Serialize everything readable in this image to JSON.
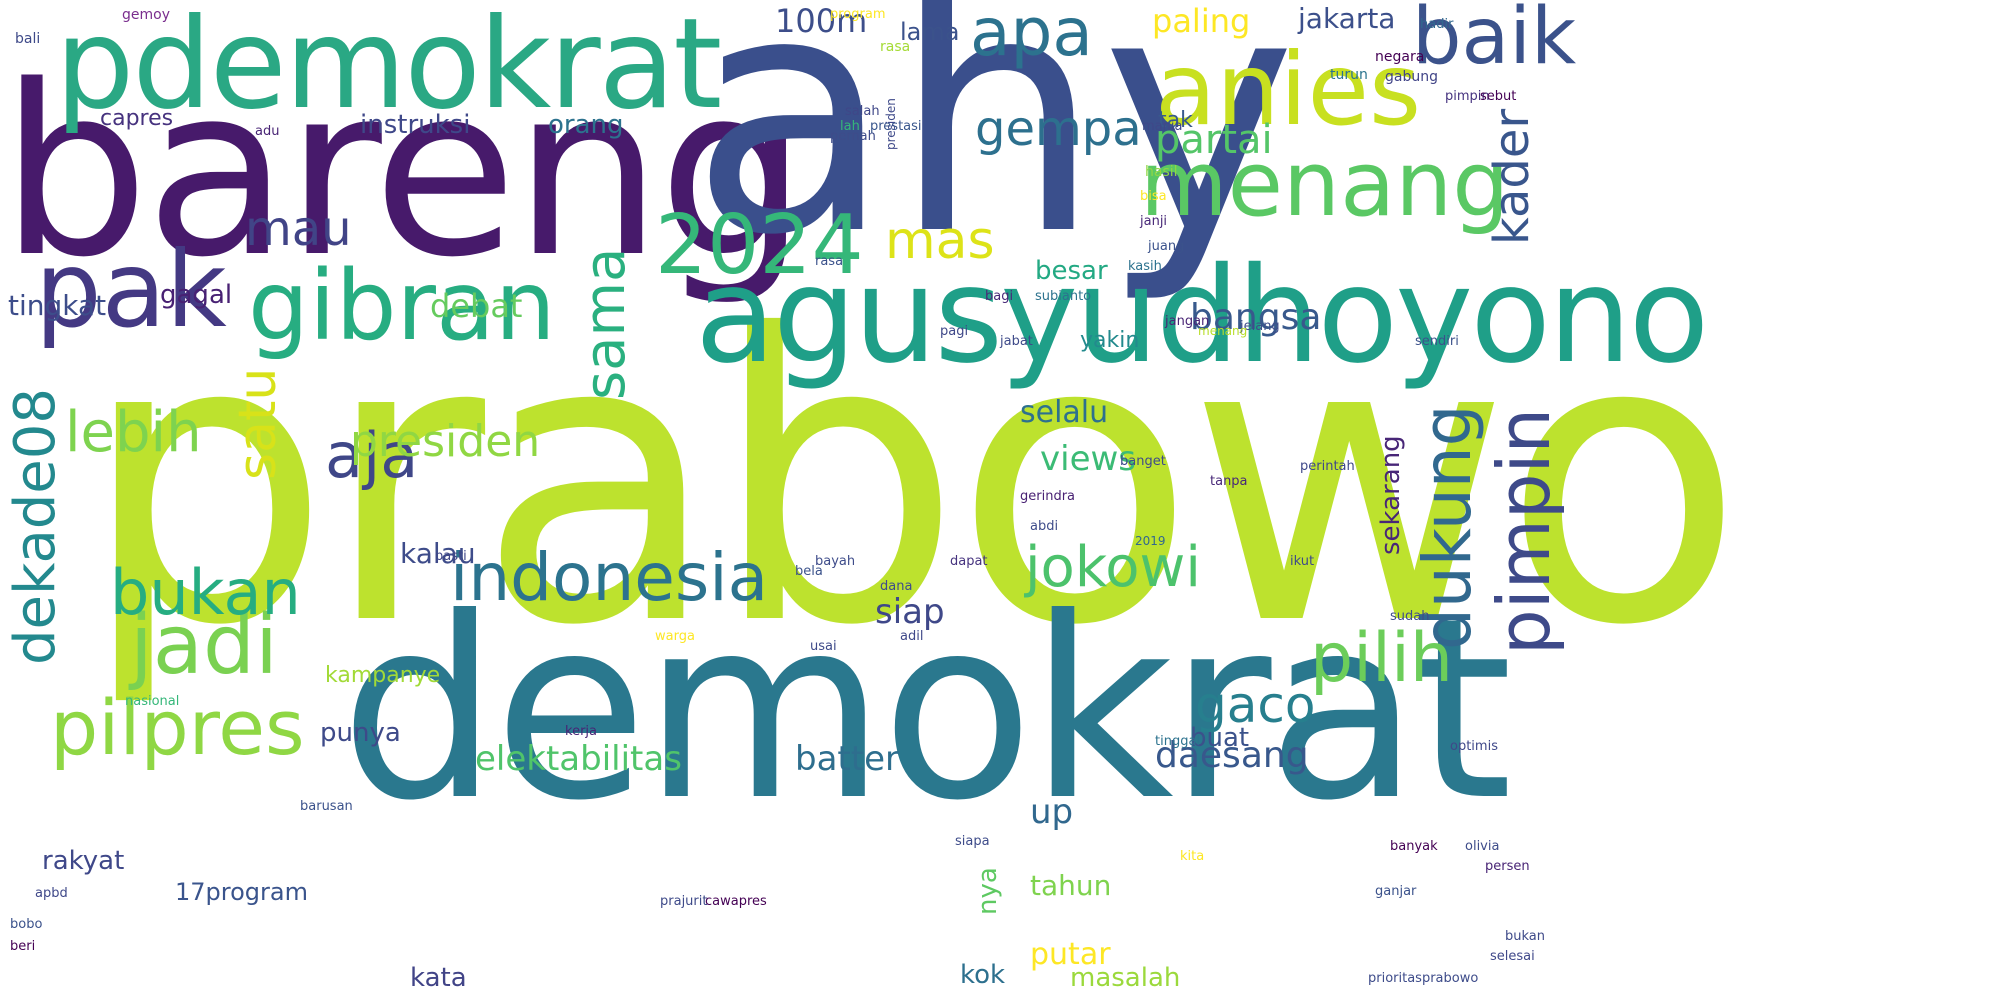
{
  "word_cloud": {
    "words": [
      {
        "text": "prabowo",
        "color": "#bde22e"
      },
      {
        "text": "bareng",
        "color": "#471a6b"
      },
      {
        "text": "ahy",
        "color": "#3a4f8c"
      },
      {
        "text": "demokrat",
        "color": "#2a788e"
      },
      {
        "text": "pdemokrat",
        "color": "#2aa884"
      },
      {
        "text": "agusyudhoyono",
        "color": "#1f9f88"
      },
      {
        "text": "anies",
        "color": "#c8e020"
      },
      {
        "text": "menang",
        "color": "#5ac864"
      },
      {
        "text": "gibran",
        "color": "#27ad81"
      },
      {
        "text": "pak",
        "color": "#443983"
      },
      {
        "text": "2024",
        "color": "#35b779"
      },
      {
        "text": "apa",
        "color": "#2c728e"
      },
      {
        "text": "baik",
        "color": "#3b528b"
      },
      {
        "text": "indonesia",
        "color": "#2c738e"
      },
      {
        "text": "jadi",
        "color": "#7ad151"
      },
      {
        "text": "pilpres",
        "color": "#8fd744"
      },
      {
        "text": "bukan",
        "color": "#26ad81"
      },
      {
        "text": "jokowi",
        "color": "#4cc26c"
      },
      {
        "text": "pimpin",
        "color": "#3e4a89"
      },
      {
        "text": "dukung",
        "color": "#31688e"
      },
      {
        "text": "pilih",
        "color": "#6ccd5a"
      },
      {
        "text": "dekade08",
        "color": "#23898e"
      },
      {
        "text": "sama",
        "color": "#2ab07f"
      },
      {
        "text": "satu",
        "color": "#d8e219"
      },
      {
        "text": "aja",
        "color": "#3f4788"
      },
      {
        "text": "lebih",
        "color": "#7ed34f"
      },
      {
        "text": "presiden",
        "color": "#90d743"
      },
      {
        "text": "mas",
        "color": "#dde318"
      },
      {
        "text": "mau",
        "color": "#414487"
      },
      {
        "text": "gempa",
        "color": "#2d708e"
      },
      {
        "text": "partai",
        "color": "#54c568"
      },
      {
        "text": "kader",
        "color": "#39568c"
      },
      {
        "text": "gaco",
        "color": "#277f8e"
      },
      {
        "text": "daesang",
        "color": "#38588c"
      },
      {
        "text": "elektabilitas",
        "color": "#50c46a"
      },
      {
        "text": "batter",
        "color": "#2e6e8e"
      },
      {
        "text": "views",
        "color": "#3bbb75"
      },
      {
        "text": "debat",
        "color": "#65cb5e"
      },
      {
        "text": "paling",
        "color": "#fde725"
      },
      {
        "text": "100m",
        "color": "#3d4e8a"
      },
      {
        "text": "jakarta",
        "color": "#3c508b"
      },
      {
        "text": "capres",
        "color": "#46327e"
      },
      {
        "text": "instruksi",
        "color": "#3f4889"
      },
      {
        "text": "orang",
        "color": "#2c728e"
      },
      {
        "text": "tak",
        "color": "#38598c"
      },
      {
        "text": "lama",
        "color": "#3b528b"
      },
      {
        "text": "besar",
        "color": "#23a983"
      },
      {
        "text": "yakin",
        "color": "#238a8d"
      },
      {
        "text": "bangsa",
        "color": "#38598c"
      },
      {
        "text": "tingkat",
        "color": "#3d4d8a"
      },
      {
        "text": "gagal",
        "color": "#482173"
      },
      {
        "text": "selalu",
        "color": "#2d718e"
      },
      {
        "text": "kalau",
        "color": "#3e4c8a"
      },
      {
        "text": "siap",
        "color": "#3f4889"
      },
      {
        "text": "kampanye",
        "color": "#a2da37"
      },
      {
        "text": "sekarang",
        "color": "#482677"
      },
      {
        "text": "punya",
        "color": "#3e4a89"
      },
      {
        "text": "buat",
        "color": "#3b528b"
      },
      {
        "text": "up",
        "color": "#31688e"
      },
      {
        "text": "rakyat",
        "color": "#3f4889"
      },
      {
        "text": "17program",
        "color": "#3a548c"
      },
      {
        "text": "nya",
        "color": "#5ec962"
      },
      {
        "text": "tahun",
        "color": "#7fd34e"
      },
      {
        "text": "putar",
        "color": "#fde725"
      },
      {
        "text": "kata",
        "color": "#414487"
      },
      {
        "text": "kok",
        "color": "#2d708e"
      },
      {
        "text": "masalah",
        "color": "#9bd93c"
      },
      {
        "text": "gemoy",
        "color": "#7a2e8e"
      },
      {
        "text": "bali",
        "color": "#3e4a89"
      },
      {
        "text": "program",
        "color": "#fde725"
      },
      {
        "text": "negara",
        "color": "#440154"
      },
      {
        "text": "hadir",
        "color": "#31688e"
      },
      {
        "text": "rasa",
        "color": "#a5db36"
      },
      {
        "text": "rasa",
        "color": "#3b528b"
      },
      {
        "text": "presiden",
        "color": "#3e4989"
      },
      {
        "text": "gabung",
        "color": "#414487"
      },
      {
        "text": "turun",
        "color": "#2b748e"
      },
      {
        "text": "pimpin",
        "color": "#46337f"
      },
      {
        "text": "sebut",
        "color": "#440154"
      },
      {
        "text": "salah",
        "color": "#3f4788"
      },
      {
        "text": "adu",
        "color": "#482475"
      },
      {
        "text": "pernah",
        "color": "#3e4c8a"
      },
      {
        "text": "lah",
        "color": "#35b779"
      },
      {
        "text": "prestasi",
        "color": "#39568c"
      },
      {
        "text": "mania",
        "color": "#3f4889"
      },
      {
        "text": "bisa",
        "color": "#fde725"
      },
      {
        "text": "hasil",
        "color": "#8fd744"
      },
      {
        "text": "janji",
        "color": "#482878"
      },
      {
        "text": "juang",
        "color": "#3b528b"
      },
      {
        "text": "bagi",
        "color": "#482878"
      },
      {
        "text": "subianto",
        "color": "#2c728e"
      },
      {
        "text": "jabat",
        "color": "#3e4a89"
      },
      {
        "text": "pagi",
        "color": "#3f4889"
      },
      {
        "text": "jangan",
        "color": "#482475"
      },
      {
        "text": "jelang",
        "color": "#3e4c8a"
      },
      {
        "text": "menang",
        "color": "#b8de29"
      },
      {
        "text": "sendiri",
        "color": "#3b528b"
      },
      {
        "text": "banget",
        "color": "#3e4a89"
      },
      {
        "text": "perintah",
        "color": "#3f4889"
      },
      {
        "text": "gerindra",
        "color": "#482173"
      },
      {
        "text": "abdi",
        "color": "#3e4c8a"
      },
      {
        "text": "2019",
        "color": "#31688e"
      },
      {
        "text": "dapat",
        "color": "#46337f"
      },
      {
        "text": "ikut",
        "color": "#3e4a89"
      },
      {
        "text": "pasti",
        "color": "#3f4788"
      },
      {
        "text": "bayah",
        "color": "#3e4c8a"
      },
      {
        "text": "bela",
        "color": "#3b528b"
      },
      {
        "text": "dana",
        "color": "#3e4c8a"
      },
      {
        "text": "adil",
        "color": "#3f4889"
      },
      {
        "text": "usai",
        "color": "#3e4a89"
      },
      {
        "text": "warga",
        "color": "#fde725"
      },
      {
        "text": "sudah",
        "color": "#3e4c8a"
      },
      {
        "text": "nasional",
        "color": "#35b779"
      },
      {
        "text": "tinggal",
        "color": "#2c728e"
      },
      {
        "text": "ganjar",
        "color": "#3b528b"
      },
      {
        "text": "banyak",
        "color": "#440154"
      },
      {
        "text": "optimis",
        "color": "#3f4889"
      },
      {
        "text": "kerja",
        "color": "#482475"
      },
      {
        "text": "siapa",
        "color": "#3e4c8a"
      },
      {
        "text": "cawapres",
        "color": "#440154"
      },
      {
        "text": "prajurit",
        "color": "#3e4a89"
      },
      {
        "text": "barusan",
        "color": "#3b528b"
      },
      {
        "text": "olivia",
        "color": "#3e4c8a"
      },
      {
        "text": "persen",
        "color": "#482475"
      },
      {
        "text": "selesai",
        "color": "#3f4889"
      },
      {
        "text": "bukan",
        "color": "#3e4a89"
      },
      {
        "text": "kita",
        "color": "#fde725"
      },
      {
        "text": "bobo",
        "color": "#3b528b"
      },
      {
        "text": "beri",
        "color": "#440154"
      },
      {
        "text": "prioritasprabowo",
        "color": "#3e4c8a"
      },
      {
        "text": "apbd",
        "color": "#3f4889"
      },
      {
        "text": "tanpa",
        "color": "#482878"
      },
      {
        "text": "kasih",
        "color": "#2c728e"
      }
    ]
  }
}
